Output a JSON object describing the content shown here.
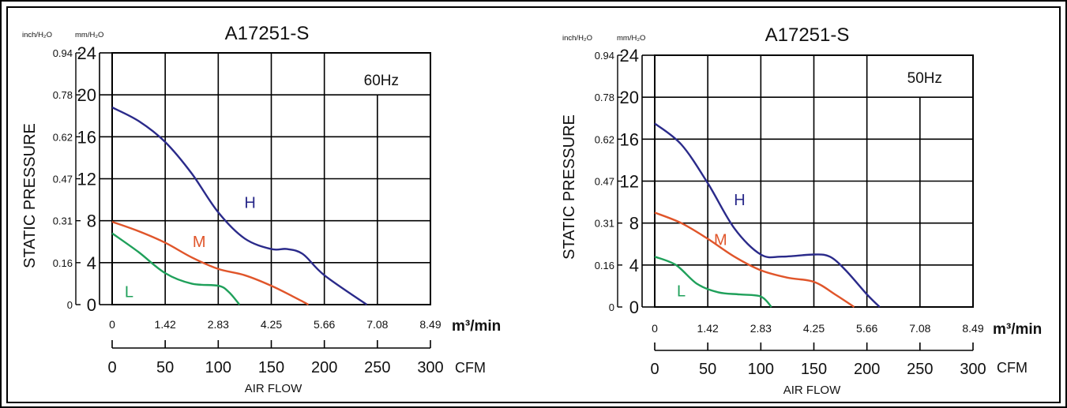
{
  "chart_data": [
    {
      "type": "line",
      "title": "A17251-S",
      "frequency_label": "60Hz",
      "left_unit_label": "inch/H₂O",
      "right_unit_label": "mm/H₂O",
      "ylabel": "STATIC PRESSURE",
      "xlabel": "AIR FLOW",
      "x_unit_top": "m³/min",
      "x_unit_bottom": "CFM",
      "ylim": [
        0,
        24
      ],
      "xlim_cfm": [
        0,
        300
      ],
      "y_ticks_mm": [
        "0",
        "4",
        "8",
        "12",
        "16",
        "20",
        "24"
      ],
      "y_ticks_inch": [
        "0",
        "0.16",
        "0.31",
        "0.47",
        "0.62",
        "0.78",
        "0.94"
      ],
      "x_ticks_m3": [
        "0",
        "1.42",
        "2.83",
        "4.25",
        "5.66",
        "7.08",
        "8.49"
      ],
      "x_ticks_cfm": [
        "0",
        "50",
        "100",
        "150",
        "200",
        "250",
        "300"
      ],
      "series": [
        {
          "name": "H",
          "color": "#2a2a8a",
          "label_at": [
            130,
            9.2
          ],
          "points": [
            [
              0,
              18.8
            ],
            [
              25,
              17.5
            ],
            [
              50,
              15.5
            ],
            [
              75,
              12.5
            ],
            [
              100,
              8.8
            ],
            [
              125,
              6.3
            ],
            [
              150,
              5.3
            ],
            [
              165,
              5.3
            ],
            [
              180,
              4.8
            ],
            [
              200,
              2.8
            ],
            [
              240,
              0
            ]
          ]
        },
        {
          "name": "M",
          "color": "#e0552a",
          "label_at": [
            82,
            5.5
          ],
          "points": [
            [
              0,
              7.9
            ],
            [
              25,
              7.0
            ],
            [
              50,
              5.9
            ],
            [
              75,
              4.5
            ],
            [
              100,
              3.4
            ],
            [
              125,
              2.8
            ],
            [
              150,
              1.8
            ],
            [
              170,
              0.8
            ],
            [
              185,
              0
            ]
          ]
        },
        {
          "name": "L",
          "color": "#1fa05a",
          "label_at": [
            16,
            0.7
          ],
          "points": [
            [
              0,
              6.8
            ],
            [
              25,
              5.0
            ],
            [
              50,
              3.0
            ],
            [
              75,
              2.0
            ],
            [
              100,
              1.8
            ],
            [
              110,
              1.2
            ],
            [
              120,
              0
            ]
          ]
        }
      ]
    },
    {
      "type": "line",
      "title": "A17251-S",
      "frequency_label": "50Hz",
      "left_unit_label": "inch/H₂O",
      "right_unit_label": "mm/H₂O",
      "ylabel": "STATIC PRESSURE",
      "xlabel": "AIR FLOW",
      "x_unit_top": "m³/min",
      "x_unit_bottom": "CFM",
      "ylim": [
        0,
        24
      ],
      "xlim_cfm": [
        0,
        300
      ],
      "y_ticks_mm": [
        "0",
        "4",
        "8",
        "12",
        "16",
        "20",
        "24"
      ],
      "y_ticks_inch": [
        "0",
        "0.16",
        "0.31",
        "0.47",
        "0.62",
        "0.78",
        "0.94"
      ],
      "x_ticks_m3": [
        "0",
        "1.42",
        "2.83",
        "4.25",
        "5.66",
        "7.08",
        "8.49"
      ],
      "x_ticks_cfm": [
        "0",
        "50",
        "100",
        "150",
        "200",
        "250",
        "300"
      ],
      "series": [
        {
          "name": "H",
          "color": "#2a2a8a",
          "label_at": [
            80,
            9.7
          ],
          "points": [
            [
              0,
              17.5
            ],
            [
              25,
              15.5
            ],
            [
              50,
              11.8
            ],
            [
              75,
              7.5
            ],
            [
              100,
              5.0
            ],
            [
              120,
              4.8
            ],
            [
              150,
              5.0
            ],
            [
              165,
              4.8
            ],
            [
              180,
              3.5
            ],
            [
              200,
              1.2
            ],
            [
              212,
              0
            ]
          ]
        },
        {
          "name": "M",
          "color": "#e0552a",
          "label_at": [
            62,
            5.9
          ],
          "points": [
            [
              0,
              9.0
            ],
            [
              25,
              8.0
            ],
            [
              50,
              6.5
            ],
            [
              75,
              4.8
            ],
            [
              100,
              3.5
            ],
            [
              125,
              2.8
            ],
            [
              150,
              2.4
            ],
            [
              170,
              1.2
            ],
            [
              188,
              0
            ]
          ]
        },
        {
          "name": "L",
          "color": "#1fa05a",
          "label_at": [
            25,
            1.0
          ],
          "points": [
            [
              0,
              4.8
            ],
            [
              20,
              4.0
            ],
            [
              40,
              2.2
            ],
            [
              60,
              1.4
            ],
            [
              80,
              1.2
            ],
            [
              100,
              1.0
            ],
            [
              110,
              0
            ]
          ]
        }
      ]
    }
  ]
}
